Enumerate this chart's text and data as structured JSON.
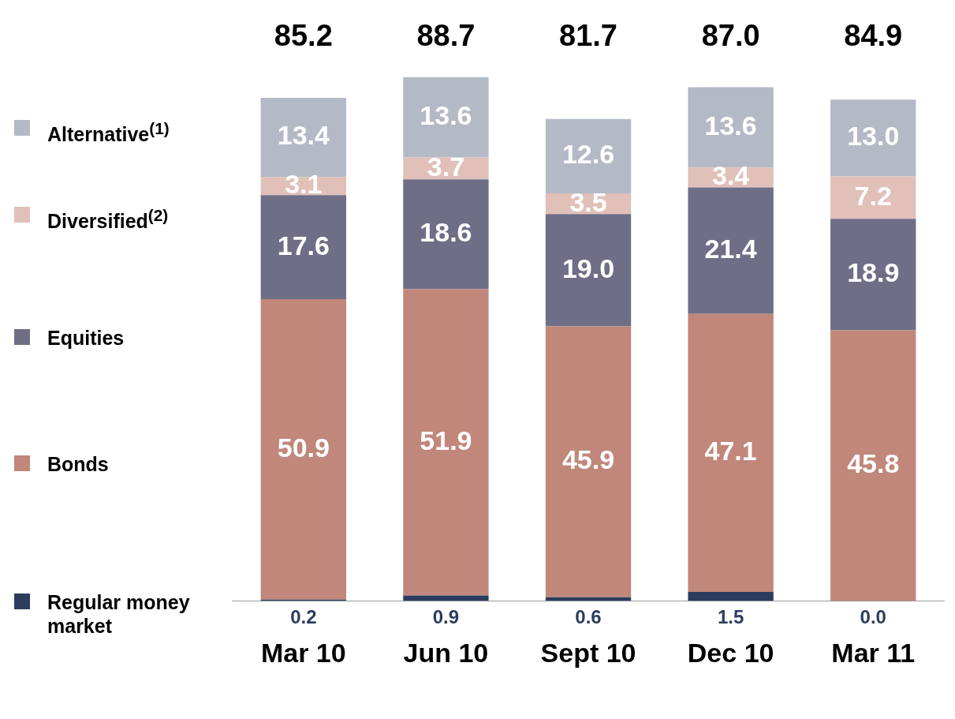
{
  "chart_data": {
    "type": "bar",
    "stacked": true,
    "categories": [
      "Mar 10",
      "Jun 10",
      "Sept 10",
      "Dec 10",
      "Mar 11"
    ],
    "series": [
      {
        "name": "Regular money market",
        "color": "#2b3d5e",
        "values": [
          0.2,
          0.9,
          0.6,
          1.5,
          0.0
        ],
        "value_labels": [
          "0.2",
          "0.9",
          "0.6",
          "1.5",
          "0.0"
        ]
      },
      {
        "name": "Bonds",
        "color": "#c0877a",
        "values": [
          50.9,
          51.9,
          45.9,
          47.1,
          45.8
        ],
        "value_labels": [
          "50.9",
          "51.9",
          "45.9",
          "47.1",
          "45.8"
        ]
      },
      {
        "name": "Equities",
        "color": "#6e6e87",
        "values": [
          17.6,
          18.6,
          19.0,
          21.4,
          18.9
        ],
        "value_labels": [
          "17.6",
          "18.6",
          "19.0",
          "21.4",
          "18.9"
        ]
      },
      {
        "name": "Diversified$^{(2)}$",
        "color": "#e0c0b8",
        "values": [
          3.1,
          3.7,
          3.5,
          3.4,
          7.2
        ],
        "value_labels": [
          "3.1",
          "3.7",
          "3.5",
          "3.4",
          "7.2"
        ]
      },
      {
        "name": "Alternative$^{(1)}$",
        "color": "#b3bac6",
        "values": [
          13.4,
          13.6,
          12.6,
          13.6,
          13.0
        ],
        "value_labels": [
          "13.4",
          "13.6",
          "12.6",
          "13.6",
          "13.0"
        ]
      }
    ],
    "totals": [
      "85.2",
      "88.7",
      "81.7",
      "87.0",
      "84.9"
    ],
    "legend": "left",
    "grid": false
  }
}
